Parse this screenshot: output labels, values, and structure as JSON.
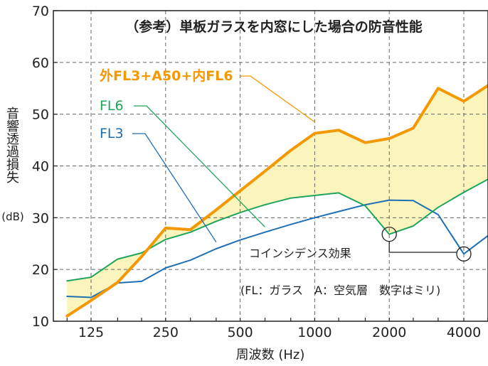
{
  "chart_data": {
    "type": "line",
    "title": "（参考）単板ガラスを内窓にした場合の防音性能",
    "xlabel": "周波数 (Hz)",
    "ylabel": "音響透過損失",
    "yunit": "(dB)",
    "x_scale": "log",
    "x": [
      100,
      125,
      160,
      200,
      250,
      315,
      400,
      500,
      630,
      800,
      1000,
      1250,
      1600,
      2000,
      2500,
      3150,
      4000,
      5000
    ],
    "xticks": [
      125,
      250,
      500,
      1000,
      2000,
      4000
    ],
    "xtick_labels": [
      "125",
      "250",
      "500",
      "1000",
      "2000",
      "4000"
    ],
    "ylim": [
      10,
      70
    ],
    "yticks": [
      10,
      20,
      30,
      40,
      50,
      60,
      70
    ],
    "grid": true,
    "series": [
      {
        "name": "外FL3+A50+内FL6",
        "color": "#f39800",
        "values": [
          11,
          14,
          17.5,
          22.5,
          28,
          27.7,
          31.5,
          35.2,
          39,
          43,
          46.3,
          46.9,
          44.5,
          45.3,
          47.3,
          55,
          52.5,
          55.5
        ]
      },
      {
        "name": "FL6",
        "color": "#1fa55a",
        "values": [
          17.8,
          18.5,
          22,
          23.2,
          25.8,
          27.2,
          29.3,
          31,
          32.5,
          33.8,
          34.3,
          34.8,
          32.3,
          26.8,
          28.4,
          32,
          34.9,
          37.4
        ]
      },
      {
        "name": "FL3",
        "color": "#1f6fb4",
        "values": [
          14.8,
          14.6,
          17.4,
          17.7,
          20.3,
          21.8,
          24,
          25.7,
          27.2,
          28.7,
          30,
          31.2,
          32.5,
          33.4,
          33.3,
          30.6,
          23,
          26.5
        ]
      }
    ],
    "fill_between": {
      "upper": "外FL3+A50+内FL6",
      "lower": "FL6",
      "color": "#fbf5bd"
    },
    "annotations": [
      {
        "text": "コインシデンス効果",
        "points_x": [
          2000,
          4000
        ],
        "points_y": [
          26.8,
          23
        ]
      },
      {
        "text": "(FL：ガラス　A：空気層　数字はミリ)"
      }
    ]
  }
}
